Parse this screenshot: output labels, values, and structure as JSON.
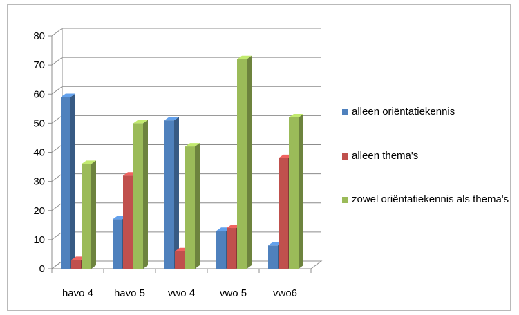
{
  "chart_data": {
    "type": "bar",
    "style": "3d-clustered-column",
    "categories": [
      "havo 4",
      "havo 5",
      "vwo 4",
      "vwo 5",
      "vwo6"
    ],
    "series": [
      {
        "name": "alleen oriëntatiekennis",
        "color": "#4f81bd",
        "values": [
          59,
          17,
          51,
          13,
          8
        ]
      },
      {
        "name": "alleen thema's",
        "color": "#c0504d",
        "values": [
          3,
          32,
          6,
          14,
          38
        ]
      },
      {
        "name": "zowel oriëntatiekennis als thema's",
        "color": "#9bbb59",
        "values": [
          36,
          50,
          42,
          72,
          52
        ]
      }
    ],
    "y_ticks": [
      "0",
      "10",
      "20",
      "30",
      "40",
      "50",
      "60",
      "70",
      "80"
    ],
    "ylim": [
      0,
      80
    ],
    "grid": true,
    "legend_position": "right"
  }
}
